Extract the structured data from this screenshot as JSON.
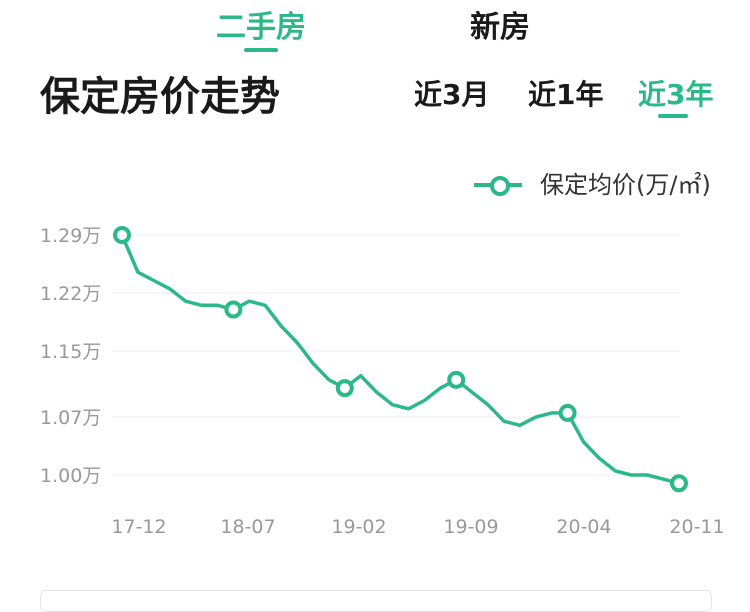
{
  "tabs": [
    {
      "label": "二手房",
      "active": true
    },
    {
      "label": "新房",
      "active": false
    }
  ],
  "page_title": "保定房价走势",
  "periods": [
    {
      "label": "近3月",
      "active": false
    },
    {
      "label": "近1年",
      "active": false
    },
    {
      "label": "近3年",
      "active": true
    }
  ],
  "colors": {
    "accent": "#2bb988",
    "grid": "#eeeeee",
    "axis_text": "#999999"
  },
  "chart_data": {
    "type": "line",
    "legend_position": "top-right",
    "grid": true,
    "y_ticks": [
      {
        "value": 1.29,
        "label": "1.29万"
      },
      {
        "value": 1.22,
        "label": "1.22万"
      },
      {
        "value": 1.15,
        "label": "1.15万"
      },
      {
        "value": 1.07,
        "label": "1.07万"
      },
      {
        "value": 1.0,
        "label": "1.00万"
      }
    ],
    "x_ticks": [
      "17-12",
      "18-07",
      "19-02",
      "19-09",
      "20-04",
      "20-11"
    ],
    "series": [
      {
        "name": "保定均价(万/㎡)",
        "x": [
          "17-12",
          "18-01",
          "18-02",
          "18-03",
          "18-04",
          "18-05",
          "18-06",
          "18-07",
          "18-08",
          "18-09",
          "18-10",
          "18-11",
          "18-12",
          "19-01",
          "19-02",
          "19-03",
          "19-04",
          "19-05",
          "19-06",
          "19-07",
          "19-08",
          "19-09",
          "19-10",
          "19-11",
          "19-12",
          "20-01",
          "20-02",
          "20-03",
          "20-04",
          "20-05",
          "20-06",
          "20-07",
          "20-08",
          "20-09",
          "20-10",
          "20-11"
        ],
        "values": [
          1.29,
          1.245,
          1.235,
          1.225,
          1.21,
          1.205,
          1.205,
          1.2,
          1.21,
          1.205,
          1.18,
          1.16,
          1.135,
          1.115,
          1.105,
          1.12,
          1.1,
          1.085,
          1.08,
          1.09,
          1.105,
          1.115,
          1.1,
          1.085,
          1.065,
          1.06,
          1.07,
          1.075,
          1.075,
          1.04,
          1.02,
          1.005,
          1.0,
          1.0,
          0.995,
          0.99
        ],
        "marked_points": [
          "17-12",
          "18-07",
          "19-02",
          "19-09",
          "20-04",
          "20-11"
        ]
      }
    ]
  },
  "legend": {
    "label": "保定均价(万/㎡)"
  }
}
